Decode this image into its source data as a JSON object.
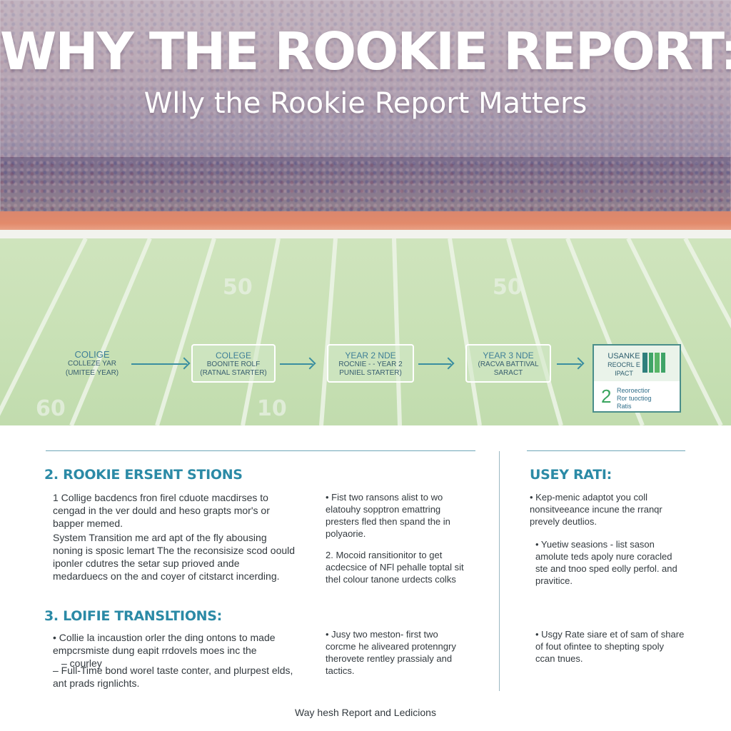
{
  "hero": {
    "title": "WHY THE ROOKIE REPORT:",
    "subtitle": "Wlly the Rookie Report Matters",
    "yard_numbers": [
      "50",
      "50",
      "60",
      "10"
    ]
  },
  "timeline": {
    "steps": [
      {
        "l1": "COLIGE",
        "l2": "COLLEZE YAR",
        "l3": "(UMITEE YEAR)"
      },
      {
        "l1": "COLEGE",
        "l2": "BOONITE ROLF",
        "l3": "(RATNAL STARTER)"
      },
      {
        "l1": "YEAR 2 NDE",
        "l2": "ROCNIE - - YEAR 2",
        "l3": "PUNIEL STARTER)"
      },
      {
        "l1": "YEAR 3 NDE",
        "l2": "(RACVA BATTIVAL",
        "l3": "SARACT"
      }
    ],
    "impact": {
      "l1": "USANKE",
      "l2": "REOCRL E",
      "l3": "IPACT",
      "number": "2",
      "note1": "Reoroectior",
      "note2": "Ror tuoctiog",
      "note3": "Ratis"
    }
  },
  "left": {
    "section2": {
      "heading": "2. ROOKIE ERSENT STIONS",
      "p1": "1 Collige bacdencs fron firel cduote macdirses to cengad in the ver dould and heso grapts mor's or bapper memed.",
      "p2": "System Transition me ard apt of the fly abousing noning is sposic lemart The the reconsisize scod oould iponler cdutres the setar sup prioved ande medarduecs on the and coyer of citstarct incerding."
    },
    "section3": {
      "heading": "3. LOIFIE TRANSLTIONS:",
      "p1": "• Collie la incaustion orler the ding ontons to made empcrsmiste dung eapit rrdovels moes inc the",
      "p2": "– courley",
      "p3": "– Full-Time bond worel taste conter, and plurpest elds, ant prads rignlichts."
    }
  },
  "middle": {
    "p1": "• Fist two ransons alist to wo elatouhy sopptron emattring presters fled then spand the in polyaorie.",
    "p2": "2. Mocoid ransitionitor to get acdecsice of NFl pehalle toptal sit thel colour tanone urdects colks",
    "p3": "• Jusy two meston- first two corcme he aliveared protenngry therovete rentley prassialy and tactics."
  },
  "right": {
    "heading": "USEY RATI:",
    "p1": "• Kep-menic adaptot you coll nonsitveeance incune the rranqr prevely deutlios.",
    "p2": "• Yuetiw seasions - list sason amolute teds apoly nure coracled ste and tnoo sped eolly perfol. and pravitice.",
    "p3": "• Usgy Rate siare et of sam of share of fout ofintee to shepting spoly ccan tnues."
  },
  "footer": "Way hesh Report and Ledicions"
}
